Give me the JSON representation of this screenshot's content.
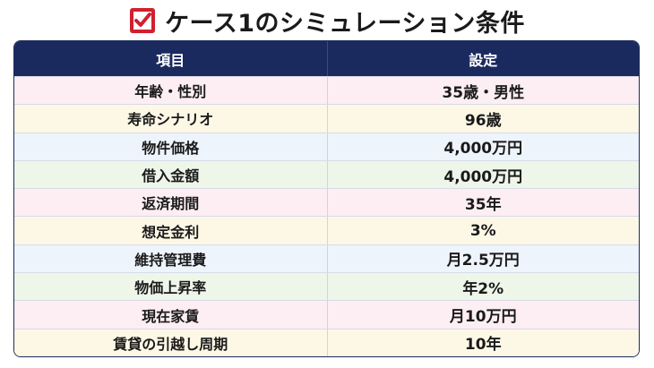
{
  "title": "ケース1のシミュレーション条件",
  "table": {
    "header": [
      "項目",
      "設定"
    ],
    "rows": [
      [
        "年齢・性別",
        "35歳・男性"
      ],
      [
        "寿命シナリオ",
        "96歳"
      ],
      [
        "物件価格",
        "4,000万円"
      ],
      [
        "借入金額",
        "4,000万円"
      ],
      [
        "返済期間",
        "35年"
      ],
      [
        "想定金利",
        "3%"
      ],
      [
        "維持管理費",
        "月2.5万円"
      ],
      [
        "物価上昇率",
        "年2%"
      ],
      [
        "現在家賃",
        "月10万円"
      ],
      [
        "賃貸の引越し周期",
        "10年"
      ]
    ]
  }
}
